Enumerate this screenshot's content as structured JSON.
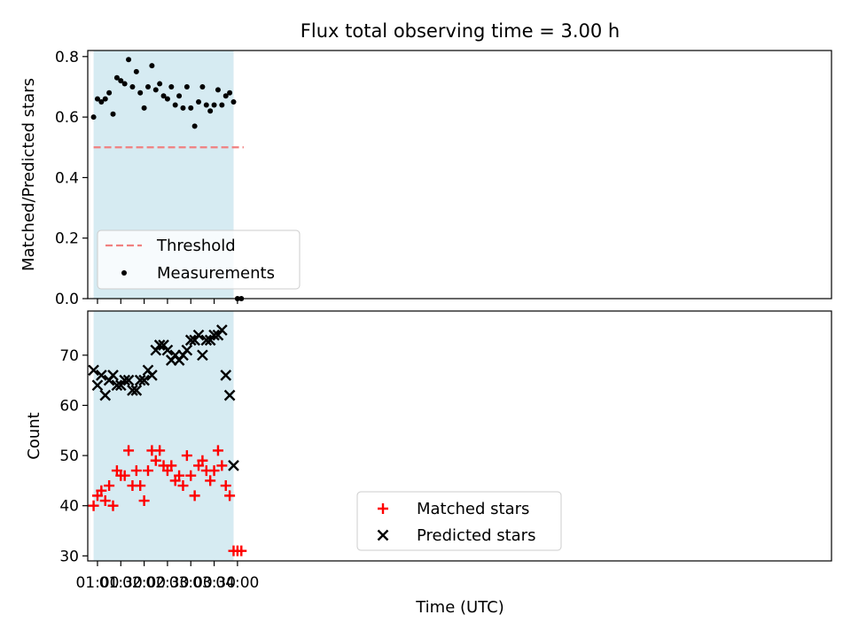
{
  "chart_data": {
    "title": "Flux total observing time = 3.00 h",
    "xlabel": "Time (UTC)",
    "x_unit": "minutes after 00:00 UTC",
    "xlim": [
      47.5,
      1003.8
    ],
    "shaded_interval": {
      "start": "00:55",
      "end": "03:55",
      "color": "#add8e6"
    },
    "x_ticks": [
      "01:00",
      "01:30",
      "02:00",
      "02:30",
      "03:00",
      "03:30",
      "04:00"
    ],
    "panels": [
      {
        "name": "ratio",
        "type": "scatter",
        "ylabel": "Matched/Predicted stars",
        "ylim": [
          0.0,
          0.82
        ],
        "y_ticks": [
          "0.0",
          "0.2",
          "0.4",
          "0.6",
          "0.8"
        ],
        "legend": {
          "position": "lower-left",
          "entries": [
            "Threshold",
            "Measurements"
          ]
        },
        "threshold": {
          "name": "Threshold",
          "value": 0.5,
          "x_start": "00:55",
          "x_end": "04:08",
          "color": "#f08080"
        },
        "series": [
          {
            "name": "Measurements",
            "marker": "dot",
            "color": "#000000",
            "x": [
              "00:55",
              "01:00",
              "01:05",
              "01:10",
              "01:15",
              "01:20",
              "01:25",
              "01:30",
              "01:35",
              "01:40",
              "01:45",
              "01:50",
              "01:55",
              "02:00",
              "02:05",
              "02:10",
              "02:15",
              "02:20",
              "02:25",
              "02:30",
              "02:35",
              "02:40",
              "02:45",
              "02:50",
              "02:55",
              "03:00",
              "03:05",
              "03:10",
              "03:15",
              "03:20",
              "03:25",
              "03:30",
              "03:35",
              "03:40",
              "03:45",
              "03:50",
              "03:55",
              "04:00",
              "04:05"
            ],
            "y": [
              0.6,
              0.66,
              0.65,
              0.66,
              0.68,
              0.61,
              0.73,
              0.72,
              0.71,
              0.79,
              0.7,
              0.75,
              0.68,
              0.63,
              0.7,
              0.77,
              0.69,
              0.71,
              0.67,
              0.66,
              0.7,
              0.64,
              0.67,
              0.63,
              0.7,
              0.63,
              0.57,
              0.65,
              0.7,
              0.64,
              0.62,
              0.64,
              0.69,
              0.64,
              0.67,
              0.68,
              0.65,
              0.0,
              0.0
            ]
          }
        ]
      },
      {
        "name": "counts",
        "type": "scatter",
        "ylabel": "Count",
        "ylim": [
          29,
          78.8
        ],
        "y_ticks": [
          "30",
          "40",
          "50",
          "60",
          "70"
        ],
        "legend": {
          "position": "lower-center",
          "entries": [
            "Matched stars",
            "Predicted stars"
          ]
        },
        "series": [
          {
            "name": "Matched stars",
            "marker": "plus",
            "color": "#ff0000",
            "x": [
              "00:55",
              "01:00",
              "01:05",
              "01:10",
              "01:15",
              "01:20",
              "01:25",
              "01:30",
              "01:35",
              "01:40",
              "01:45",
              "01:50",
              "01:55",
              "02:00",
              "02:05",
              "02:10",
              "02:15",
              "02:20",
              "02:25",
              "02:30",
              "02:35",
              "02:40",
              "02:45",
              "02:50",
              "02:55",
              "03:00",
              "03:05",
              "03:10",
              "03:15",
              "03:20",
              "03:25",
              "03:30",
              "03:35",
              "03:40",
              "03:45",
              "03:50",
              "03:55",
              "04:00",
              "04:05"
            ],
            "y": [
              40,
              42,
              43,
              41,
              44,
              40,
              47,
              46,
              46,
              51,
              44,
              47,
              44,
              41,
              47,
              51,
              49,
              51,
              48,
              47,
              48,
              45,
              46,
              44,
              50,
              46,
              42,
              48,
              49,
              47,
              45,
              47,
              51,
              48,
              44,
              42,
              31,
              31,
              31
            ]
          },
          {
            "name": "Predicted stars",
            "marker": "x",
            "color": "#000000",
            "x": [
              "00:55",
              "01:00",
              "01:05",
              "01:10",
              "01:15",
              "01:20",
              "01:25",
              "01:30",
              "01:35",
              "01:40",
              "01:45",
              "01:50",
              "01:55",
              "02:00",
              "02:05",
              "02:10",
              "02:15",
              "02:20",
              "02:25",
              "02:30",
              "02:35",
              "02:40",
              "02:45",
              "02:50",
              "02:55",
              "03:00",
              "03:05",
              "03:10",
              "03:15",
              "03:20",
              "03:25",
              "03:30",
              "03:35",
              "03:40",
              "03:45",
              "03:50",
              "03:55"
            ],
            "y": [
              67,
              64,
              66,
              62,
              65,
              66,
              64,
              64,
              65,
              65,
              63,
              63,
              65,
              65,
              67,
              66,
              71,
              72,
              72,
              71,
              69,
              70,
              69,
              70,
              71,
              73,
              73,
              74,
              70,
              73,
              73,
              74,
              74,
              75,
              66,
              62,
              48
            ]
          }
        ]
      }
    ]
  }
}
